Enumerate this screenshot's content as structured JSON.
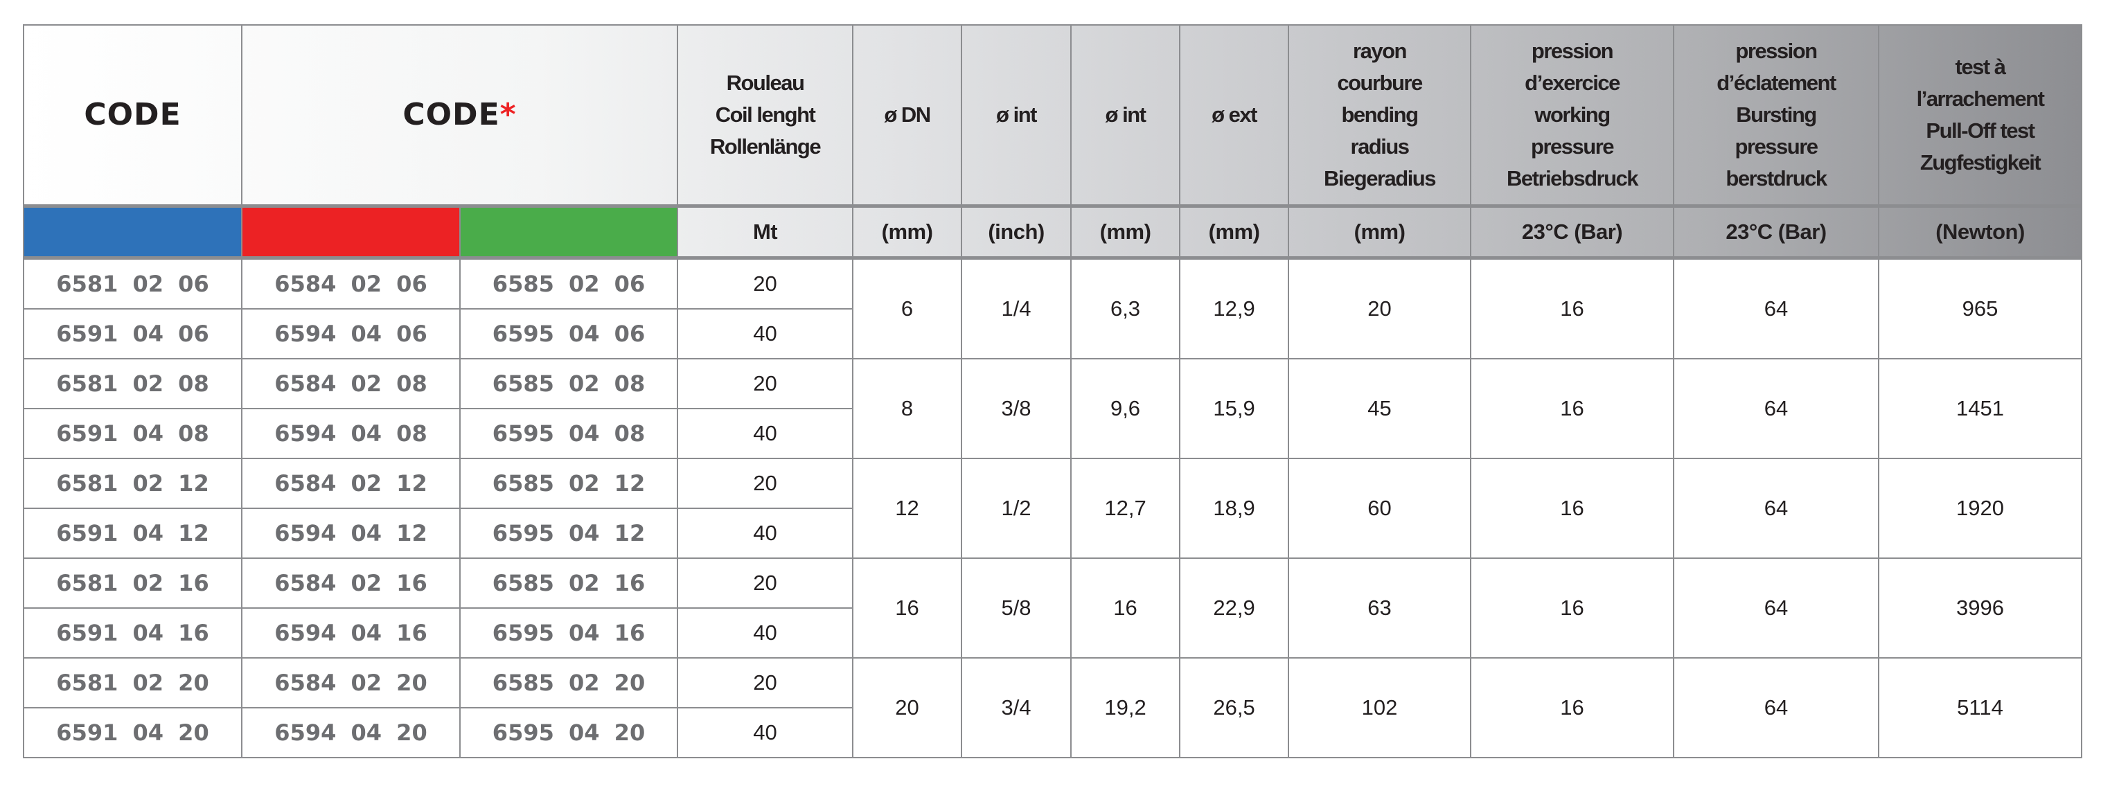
{
  "header": {
    "code": "CODE",
    "code_star": "CODE",
    "asterisk": "*",
    "columns": [
      "Rouleau\nCoil lenght\nRollenlänge",
      "ø DN",
      "ø int",
      "ø int",
      "ø ext",
      "rayon\ncourbure\nbending\nradius\nBiegeradius",
      "pression\nd’exercice\nworking\npressure\nBetriebsdruck",
      "pression\nd’éclatement\nBursting\npressure\nberstdruck",
      "test à\nl’arrachement\nPull-Off test\nZugfestigkeit"
    ]
  },
  "color_swatches": [
    "#2e72b9",
    "#ec2224",
    "#4aac4a"
  ],
  "units": [
    "Mt",
    "(mm)",
    "(inch)",
    "(mm)",
    "(mm)",
    "(mm)",
    "23°C (Bar)",
    "23°C (Bar)",
    "(Newton)"
  ],
  "groups": [
    {
      "rows": [
        {
          "codes": [
            "6581 02 06",
            "6584 02 06",
            "6585 02 06"
          ],
          "length": "20"
        },
        {
          "codes": [
            "6591 04 06",
            "6594 04 06",
            "6595 04 06"
          ],
          "length": "40"
        }
      ],
      "specs": [
        "6",
        "1/4",
        "6,3",
        "12,9",
        "20",
        "16",
        "64",
        "965"
      ]
    },
    {
      "rows": [
        {
          "codes": [
            "6581 02 08",
            "6584 02 08",
            "6585 02 08"
          ],
          "length": "20"
        },
        {
          "codes": [
            "6591 04 08",
            "6594 04 08",
            "6595 04 08"
          ],
          "length": "40"
        }
      ],
      "specs": [
        "8",
        "3/8",
        "9,6",
        "15,9",
        "45",
        "16",
        "64",
        "1451"
      ]
    },
    {
      "rows": [
        {
          "codes": [
            "6581 02 12",
            "6584 02 12",
            "6585 02 12"
          ],
          "length": "20"
        },
        {
          "codes": [
            "6591 04 12",
            "6594 04 12",
            "6595 04 12"
          ],
          "length": "40"
        }
      ],
      "specs": [
        "12",
        "1/2",
        "12,7",
        "18,9",
        "60",
        "16",
        "64",
        "1920"
      ]
    },
    {
      "rows": [
        {
          "codes": [
            "6581 02 16",
            "6584 02 16",
            "6585 02 16"
          ],
          "length": "20"
        },
        {
          "codes": [
            "6591 04 16",
            "6594 04 16",
            "6595 04 16"
          ],
          "length": "40"
        }
      ],
      "specs": [
        "16",
        "5/8",
        "16",
        "22,9",
        "63",
        "16",
        "64",
        "3996"
      ]
    },
    {
      "rows": [
        {
          "codes": [
            "6581 02 20",
            "6584 02 20",
            "6585 02 20"
          ],
          "length": "20"
        },
        {
          "codes": [
            "6591 04 20",
            "6594 04 20",
            "6595 04 20"
          ],
          "length": "40"
        }
      ],
      "specs": [
        "20",
        "3/4",
        "19,2",
        "26,5",
        "102",
        "16",
        "64",
        "5114"
      ]
    }
  ]
}
